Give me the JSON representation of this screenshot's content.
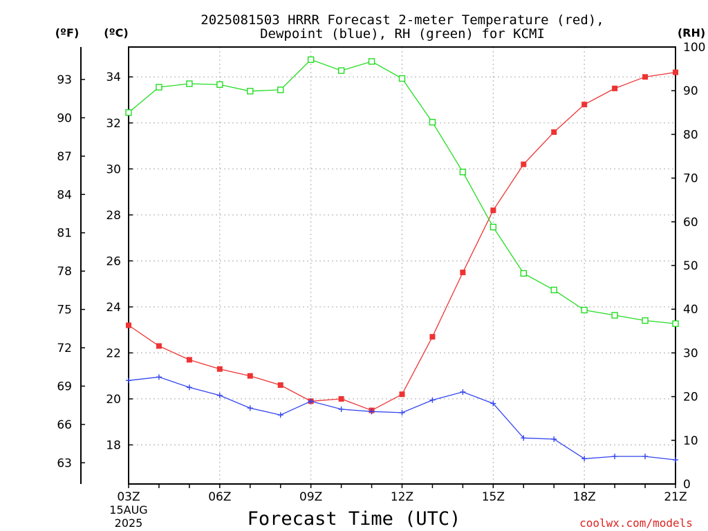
{
  "chart_data": {
    "type": "line",
    "title_line1": "2025081503 HRRR Forecast 2-meter Temperature (red),",
    "title_line2": "Dewpoint (blue), RH (green) for KCMI",
    "xlabel": "Forecast Time (UTC)",
    "unit_f": "(ºF)",
    "unit_c": "(ºC)",
    "unit_rh": "(RH)",
    "date_label_1": "15AUG",
    "date_label_2": "2025",
    "credit": "coolwx.com/models",
    "x_hours": [
      3,
      4,
      5,
      6,
      7,
      8,
      9,
      10,
      11,
      12,
      13,
      14,
      15,
      16,
      17,
      18,
      19,
      20,
      21
    ],
    "x_ticks": [
      {
        "hour": 3,
        "label": "03Z"
      },
      {
        "hour": 6,
        "label": "06Z"
      },
      {
        "hour": 9,
        "label": "09Z"
      },
      {
        "hour": 12,
        "label": "12Z"
      },
      {
        "hour": 15,
        "label": "15Z"
      },
      {
        "hour": 18,
        "label": "18Z"
      },
      {
        "hour": 21,
        "label": "21Z"
      }
    ],
    "celsius_ylim": [
      16.3,
      35.3
    ],
    "celsius_ticks": [
      18,
      20,
      22,
      24,
      26,
      28,
      30,
      32,
      34
    ],
    "fahrenheit_ticks": [
      63,
      66,
      69,
      72,
      75,
      78,
      81,
      84,
      87,
      90,
      93
    ],
    "rh_ylim": [
      0,
      100
    ],
    "rh_ticks": [
      0,
      10,
      20,
      30,
      40,
      50,
      60,
      70,
      80,
      90,
      100
    ],
    "series": [
      {
        "name": "Temperature (red)",
        "axis": "celsius",
        "color": "#ee3333",
        "marker": "filled-square",
        "values": [
          23.2,
          22.3,
          21.7,
          21.3,
          21.0,
          20.6,
          19.9,
          20.0,
          19.5,
          20.2,
          22.7,
          25.5,
          28.2,
          30.2,
          31.6,
          32.8,
          33.5,
          34.0,
          34.2
        ]
      },
      {
        "name": "Dewpoint (blue)",
        "axis": "celsius",
        "color": "#3344ee",
        "marker": "plus",
        "values": [
          20.8,
          20.95,
          20.5,
          20.15,
          19.6,
          19.3,
          19.9,
          19.55,
          19.45,
          19.4,
          19.95,
          20.3,
          19.8,
          18.3,
          18.25,
          17.4,
          17.5,
          17.5,
          17.35
        ]
      },
      {
        "name": "RH (green)",
        "axis": "rh",
        "color": "#22dd22",
        "marker": "open-square",
        "values": [
          85,
          90.8,
          91.6,
          91.4,
          89.9,
          90.2,
          97.1,
          94.6,
          96.7,
          92.8,
          82.8,
          71.4,
          58.8,
          48.2,
          44.4,
          39.8,
          38.6,
          37.4,
          36.7
        ]
      }
    ],
    "grid": true,
    "legend": "none"
  },
  "colors": {
    "temperature": "#ee3333",
    "dewpoint": "#3344ee",
    "rh": "#22dd22",
    "credit": "#dd2222",
    "grid": "#aaaaaa"
  }
}
